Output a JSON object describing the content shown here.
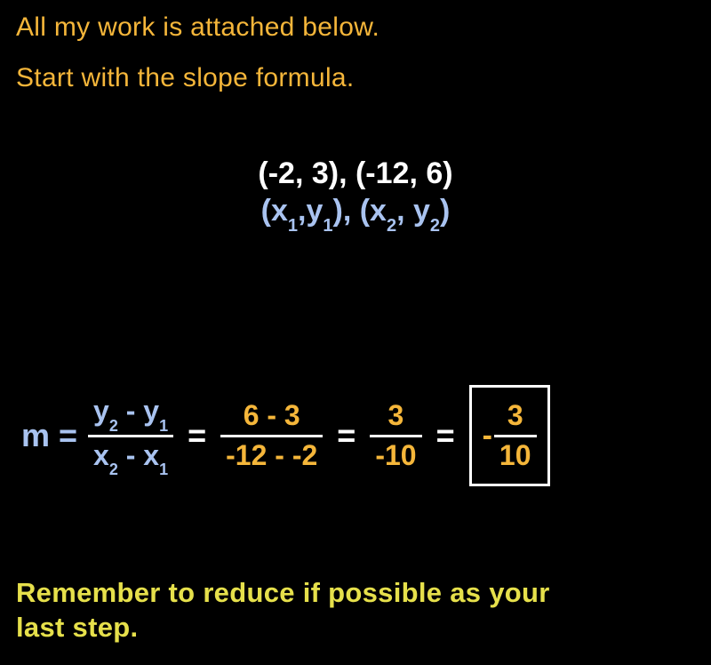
{
  "colors": {
    "background": "#000000",
    "intro_text": "#f5b63a",
    "points_numeric": "#ffffff",
    "points_generic": "#a9c3f0",
    "formula_lhs": "#a9c3f0",
    "formula_values": "#f5b63a",
    "equals_sign": "#ffffff",
    "fraction_bar": "#ffffff",
    "box_border": "#ffffff",
    "footer_text": "#e6e04b"
  },
  "typography": {
    "intro_fontsize": 30,
    "points_fontsize": 34,
    "eq_fontsize": 36,
    "frac_fontsize": 32,
    "sub_fontsize": 18,
    "footer_fontsize": 31,
    "font_family": "Arial"
  },
  "intro": {
    "line1": "All my work is attached below.",
    "line2": "Start with the slope formula."
  },
  "points": {
    "numeric": "(-2, 3), (-12, 6)",
    "generic_open1": "(x",
    "generic_s1": "1",
    "generic_mid1": ",y",
    "generic_s2": "1",
    "generic_close1_open2": "), (x",
    "generic_s3": "2",
    "generic_mid2": ", y",
    "generic_s4": "2",
    "generic_close2": ")"
  },
  "equation": {
    "m_eq": "m =",
    "eq": "=",
    "frac1": {
      "num_a": "y",
      "num_a_sub": "2",
      "num_op": " - ",
      "num_b": "y",
      "num_b_sub": "1",
      "den_a": "x",
      "den_a_sub": "2",
      "den_op": " - ",
      "den_b": "x",
      "den_b_sub": "1"
    },
    "frac2": {
      "num": "6  -  3",
      "den": "-12  -  -2"
    },
    "frac3": {
      "num": "3",
      "den": "-10"
    },
    "result": {
      "sign": "-",
      "num": "3",
      "den": "10"
    }
  },
  "footer": {
    "line1": "Remember to reduce if possible as your",
    "line2": "last step."
  }
}
